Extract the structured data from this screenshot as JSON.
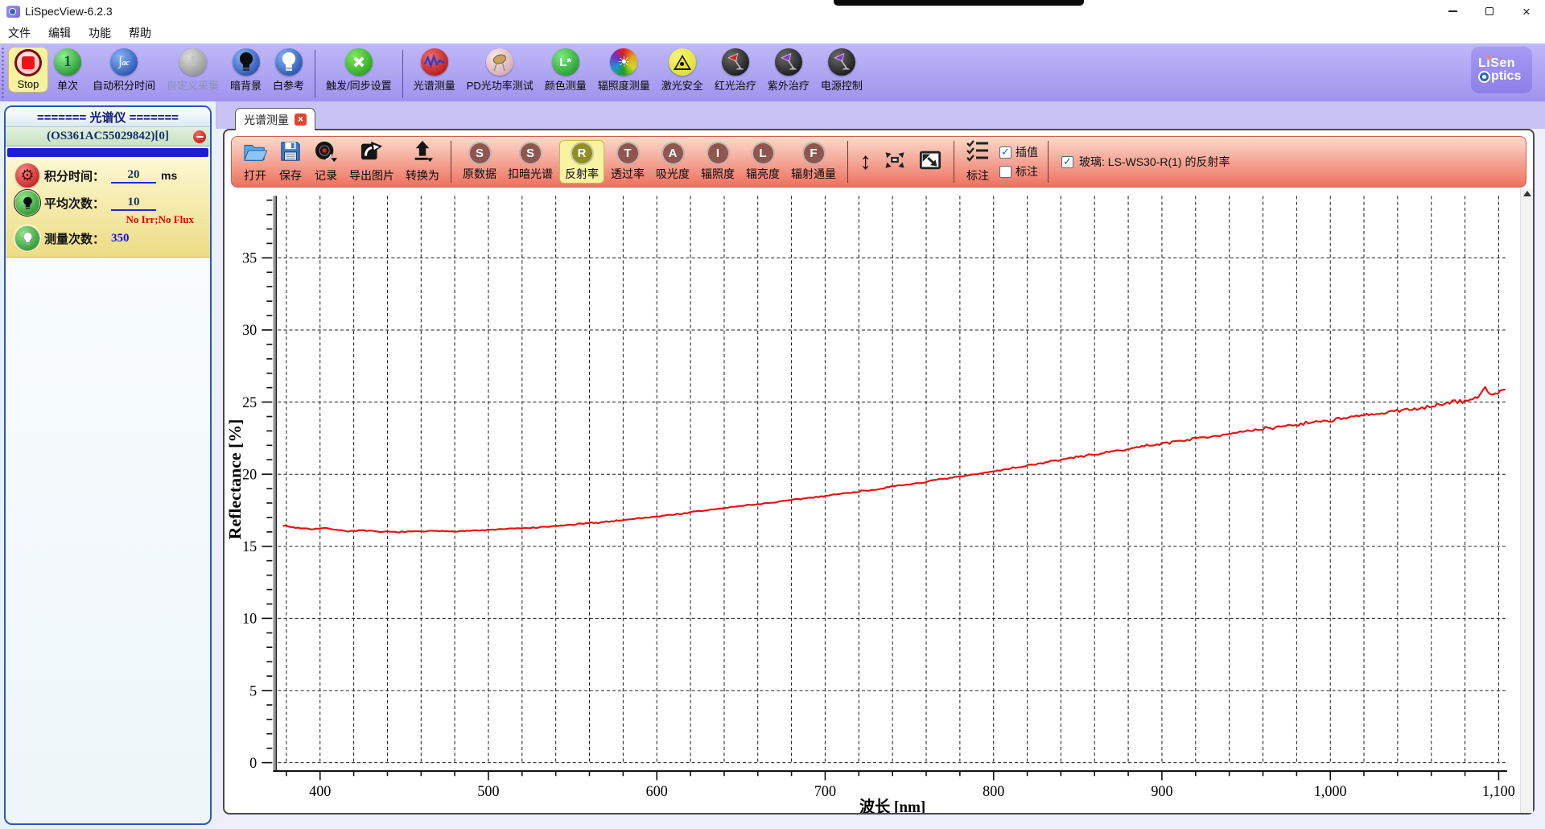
{
  "window": {
    "title": "LiSpecView-6.2.3"
  },
  "menu": {
    "items": [
      {
        "id": "file",
        "label": "文件"
      },
      {
        "id": "edit",
        "label": "编辑"
      },
      {
        "id": "function",
        "label": "功能"
      },
      {
        "id": "help",
        "label": "帮助"
      }
    ]
  },
  "toolbar": {
    "buttons": [
      {
        "id": "stop",
        "label": "Stop",
        "icon": "stop-icon",
        "highlight": true
      },
      {
        "id": "single",
        "label": "单次",
        "icon": "single-shot-icon"
      },
      {
        "id": "auto-integration",
        "label": "自动积分时间",
        "icon": "auto-integration-icon"
      },
      {
        "id": "custom-acquire",
        "label": "自定义采集",
        "icon": "custom-acquire-icon",
        "disabled": true
      },
      {
        "id": "dark-background",
        "label": "暗背景",
        "icon": "dark-bulb-icon"
      },
      {
        "id": "white-reference",
        "label": "白参考",
        "icon": "white-bulb-icon"
      },
      {
        "sep": true
      },
      {
        "id": "trigger-sync",
        "label": "触发/同步设置",
        "icon": "trigger-sync-icon"
      },
      {
        "sep": true
      },
      {
        "id": "spectrum-measure",
        "label": "光谱测量",
        "icon": "spectrum-icon"
      },
      {
        "id": "pd-power-test",
        "label": "PD光功率测试",
        "icon": "pd-photodiode-icon"
      },
      {
        "id": "color-measure",
        "label": "颜色测量",
        "icon": "color-lstar-icon"
      },
      {
        "id": "irradiance-measure",
        "label": "辐照度测量",
        "icon": "irradiance-sun-icon"
      },
      {
        "id": "laser-safety",
        "label": "激光安全",
        "icon": "laser-warning-icon"
      },
      {
        "id": "red-therapy",
        "label": "红光治疗",
        "icon": "red-lamp-icon"
      },
      {
        "id": "uv-therapy",
        "label": "紫外治疗",
        "icon": "uv-lamp-icon"
      },
      {
        "id": "power-control",
        "label": "电源控制",
        "icon": "power-lamp-icon"
      }
    ]
  },
  "logo": {
    "line1": "LiSen",
    "line2": "ptics"
  },
  "sidebar": {
    "header": "======= 光谱仪 =======",
    "device": "(OS361AC55029842)[0]",
    "integration_label": "积分时间：",
    "integration_value": "20",
    "integration_unit": "ms",
    "average_label": "平均次数：",
    "average_value": "10",
    "warning": "No Irr;No Flux",
    "count_label": "测量次数：",
    "count_value": "350"
  },
  "tab": {
    "label": "光谱测量",
    "close": "×"
  },
  "spec_toolbar": {
    "file_buttons": [
      {
        "id": "open",
        "label": "打开",
        "icon": "open-folder-icon"
      },
      {
        "id": "save",
        "label": "保存",
        "icon": "save-floppy-icon"
      },
      {
        "id": "record",
        "label": "记录",
        "icon": "record-disc-icon"
      },
      {
        "id": "export-image",
        "label": "导出图片",
        "icon": "export-image-icon"
      },
      {
        "id": "convert-to",
        "label": "转换为",
        "icon": "convert-arrow-icon"
      }
    ],
    "mode_buttons": [
      {
        "id": "raw-data",
        "letter": "S",
        "label": "原数据"
      },
      {
        "id": "dark-subtract",
        "letter": "S",
        "label": "扣暗光谱"
      },
      {
        "id": "reflectance",
        "letter": "R",
        "label": "反射率",
        "active": true
      },
      {
        "id": "transmittance",
        "letter": "T",
        "label": "透过率"
      },
      {
        "id": "absorbance",
        "letter": "A",
        "label": "吸光度"
      },
      {
        "id": "irradiance",
        "letter": "I",
        "label": "辐照度"
      },
      {
        "id": "radiance",
        "letter": "L",
        "label": "辐亮度"
      },
      {
        "id": "radiant-flux",
        "letter": "F",
        "label": "辐射通量"
      }
    ],
    "view_buttons": [
      {
        "id": "vertical-scale",
        "icon": "vertical-arrows-icon"
      },
      {
        "id": "fit-view",
        "icon": "fit-view-icon"
      },
      {
        "id": "zoom-box",
        "icon": "zoom-box-icon"
      }
    ],
    "annotate_button": {
      "id": "annotate",
      "label": "标注",
      "icon": "checklist-icon"
    },
    "checkboxes": [
      {
        "id": "interpolate",
        "label": "插值",
        "checked": true
      },
      {
        "id": "annotation",
        "label": "标注",
        "checked": false
      }
    ],
    "series_checkbox": {
      "label": "玻璃: LS-WS30-R(1) 的反射率",
      "checked": true
    }
  },
  "chart_data": {
    "type": "line",
    "title": "",
    "xlabel": "波长 [nm]",
    "ylabel": "Reflectance [%]",
    "xlim": [
      375,
      1105
    ],
    "ylim": [
      0,
      39.3
    ],
    "x_major_ticks": [
      400,
      500,
      600,
      700,
      800,
      900,
      1000,
      1100
    ],
    "x_minor_step": 20,
    "y_major_step": 5,
    "y_minor_step": 1,
    "y_label_max": 35,
    "grid": "dashed",
    "legend": "none",
    "series": [
      {
        "name": "玻璃: LS-WS30-R(1) 的反射率",
        "color": "#e81212",
        "x": [
          378,
          385,
          395,
          405,
          415,
          425,
          435,
          450,
          465,
          480,
          495,
          510,
          530,
          550,
          570,
          590,
          610,
          630,
          650,
          670,
          690,
          710,
          730,
          750,
          770,
          790,
          810,
          830,
          850,
          870,
          890,
          910,
          930,
          950,
          970,
          990,
          1010,
          1030,
          1050,
          1070,
          1082,
          1088,
          1092,
          1095,
          1098,
          1101,
          1105
        ],
        "y": [
          16.45,
          16.3,
          16.2,
          16.25,
          16.05,
          16.1,
          16.0,
          16.0,
          16.05,
          16.05,
          16.1,
          16.2,
          16.3,
          16.5,
          16.7,
          16.95,
          17.2,
          17.5,
          17.8,
          18.05,
          18.35,
          18.65,
          18.95,
          19.3,
          19.65,
          20.0,
          20.4,
          20.8,
          21.2,
          21.55,
          21.95,
          22.3,
          22.65,
          22.95,
          23.3,
          23.6,
          23.9,
          24.2,
          24.55,
          24.9,
          25.15,
          25.3,
          26.05,
          25.5,
          25.6,
          25.8,
          25.9
        ]
      }
    ],
    "noise_bands": [
      [
        550,
        0.05
      ],
      [
        750,
        0.065
      ],
      [
        880,
        0.08
      ],
      [
        960,
        0.11
      ],
      [
        1040,
        0.16
      ],
      [
        1200,
        0.2
      ]
    ]
  }
}
